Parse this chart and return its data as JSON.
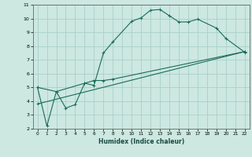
{
  "title": "",
  "xlabel": "Humidex (Indice chaleur)",
  "bg_color": "#cce8e0",
  "grid_color": "#aacfc8",
  "line_color": "#1a6b5a",
  "xlim": [
    -0.5,
    22.5
  ],
  "ylim": [
    2,
    11
  ],
  "xticks": [
    0,
    1,
    2,
    3,
    4,
    5,
    6,
    7,
    8,
    9,
    10,
    11,
    12,
    13,
    14,
    15,
    16,
    17,
    18,
    19,
    20,
    21,
    22
  ],
  "yticks": [
    2,
    3,
    4,
    5,
    6,
    7,
    8,
    9,
    10,
    11
  ],
  "line1_x": [
    0,
    1,
    2,
    3,
    4,
    5,
    6,
    7,
    8,
    10,
    11,
    12,
    13,
    14,
    15,
    16,
    17,
    19,
    20,
    22
  ],
  "line1_y": [
    5.0,
    2.2,
    4.7,
    3.5,
    3.75,
    5.3,
    5.15,
    7.5,
    8.3,
    9.8,
    10.05,
    10.6,
    10.65,
    10.2,
    9.75,
    9.75,
    9.95,
    9.3,
    8.55,
    7.55
  ],
  "line2_x": [
    0,
    2,
    5,
    6,
    7,
    8,
    22
  ],
  "line2_y": [
    5.0,
    4.7,
    5.3,
    5.5,
    5.5,
    5.6,
    7.6
  ],
  "line3_x": [
    0,
    22
  ],
  "line3_y": [
    3.8,
    7.6
  ]
}
